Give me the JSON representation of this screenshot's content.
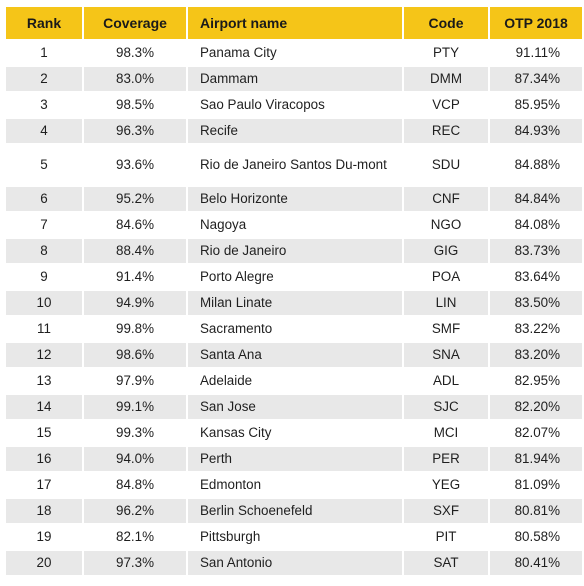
{
  "table": {
    "headers": [
      "Rank",
      "Coverage",
      "Airport name",
      "Code",
      "OTP 2018"
    ],
    "rows": [
      [
        "1",
        "98.3%",
        "Panama City",
        "PTY",
        "91.11%"
      ],
      [
        "2",
        "83.0%",
        "Dammam",
        "DMM",
        "87.34%"
      ],
      [
        "3",
        "98.5%",
        "Sao Paulo Viracopos",
        "VCP",
        "85.95%"
      ],
      [
        "4",
        "96.3%",
        "Recife",
        "REC",
        "84.93%"
      ],
      [
        "5",
        "93.6%",
        "Rio de Janeiro Santos Du-mont",
        "SDU",
        "84.88%"
      ],
      [
        "6",
        "95.2%",
        "Belo Horizonte",
        "CNF",
        "84.84%"
      ],
      [
        "7",
        "84.6%",
        "Nagoya",
        "NGO",
        "84.08%"
      ],
      [
        "8",
        "88.4%",
        "Rio de Janeiro",
        "GIG",
        "83.73%"
      ],
      [
        "9",
        "91.4%",
        "Porto Alegre",
        "POA",
        "83.64%"
      ],
      [
        "10",
        "94.9%",
        "Milan Linate",
        "LIN",
        "83.50%"
      ],
      [
        "11",
        "99.8%",
        "Sacramento",
        "SMF",
        "83.22%"
      ],
      [
        "12",
        "98.6%",
        "Santa Ana",
        "SNA",
        "83.20%"
      ],
      [
        "13",
        "97.9%",
        "Adelaide",
        "ADL",
        "82.95%"
      ],
      [
        "14",
        "99.1%",
        "San Jose",
        "SJC",
        "82.20%"
      ],
      [
        "15",
        "99.3%",
        "Kansas City",
        "MCI",
        "82.07%"
      ],
      [
        "16",
        "94.0%",
        "Perth",
        "PER",
        "81.94%"
      ],
      [
        "17",
        "84.8%",
        "Edmonton",
        "YEG",
        "81.09%"
      ],
      [
        "18",
        "96.2%",
        "Berlin Schoenefeld",
        "SXF",
        "80.81%"
      ],
      [
        "19",
        "82.1%",
        "Pittsburgh",
        "PIT",
        "80.58%"
      ],
      [
        "20",
        "97.3%",
        "San Antonio",
        "SAT",
        "80.41%"
      ]
    ]
  }
}
